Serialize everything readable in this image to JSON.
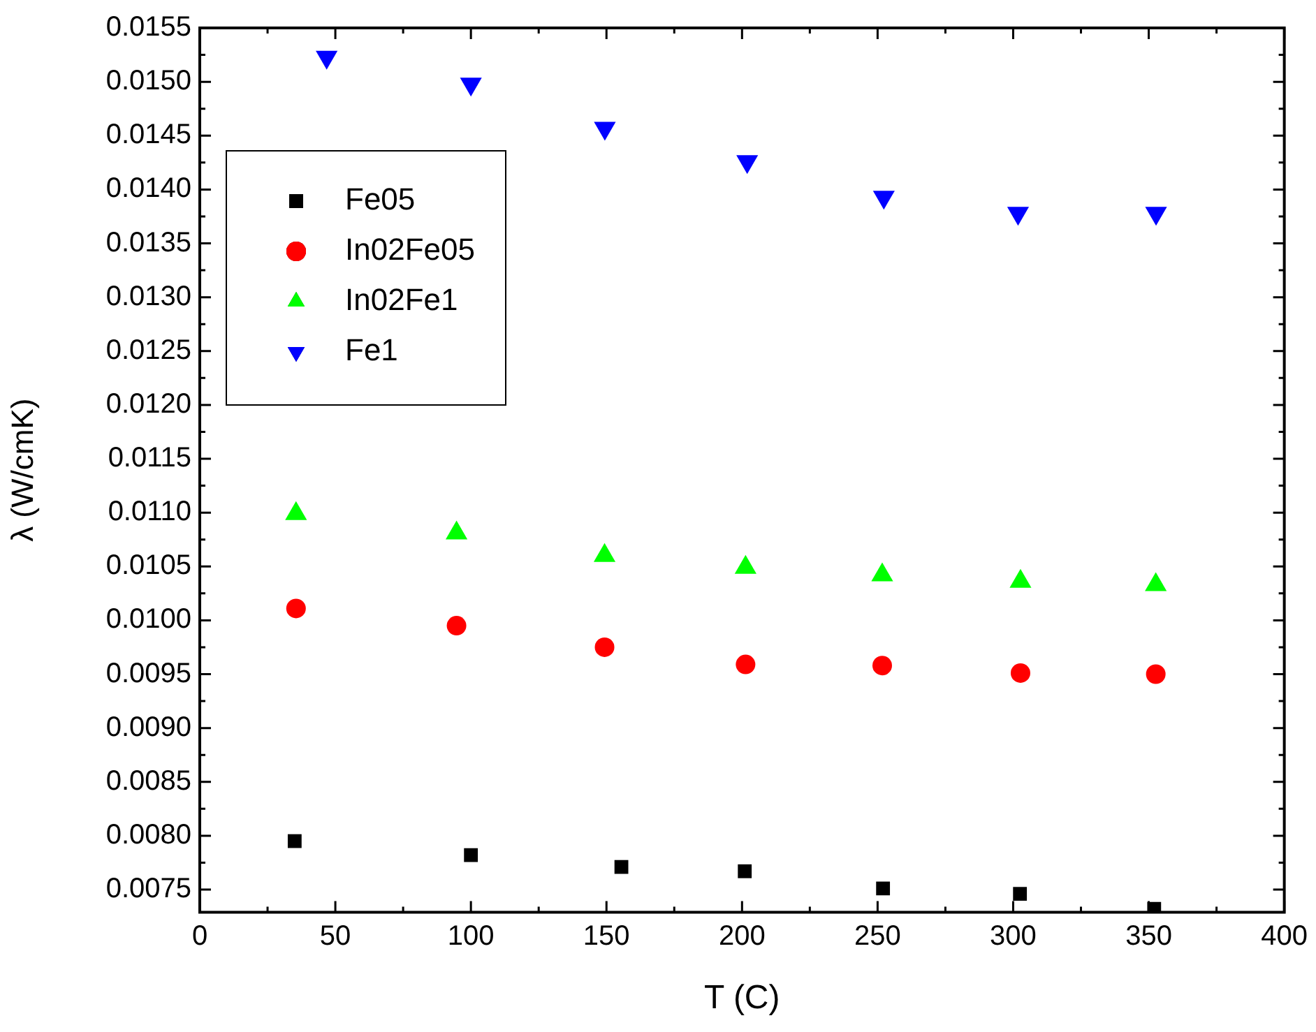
{
  "chart_data": {
    "type": "scatter",
    "xlabel": "T (C)",
    "ylabel": "λ (W/cmK)",
    "xlim": [
      0,
      400
    ],
    "xticks": [
      0,
      50,
      100,
      150,
      200,
      250,
      300,
      350,
      400
    ],
    "ylim": [
      0.00729,
      0.0155
    ],
    "yticks": [
      0.0075,
      {
        "value": 0.008,
        "label": "0.0080"
      },
      0.0085,
      {
        "value": 0.009,
        "label": "0.0090"
      },
      0.0095,
      {
        "value": 0.01,
        "label": "0.0100"
      },
      0.0105,
      {
        "value": 0.011,
        "label": "0.0110"
      },
      0.0115,
      {
        "value": 0.012,
        "label": "0.0120"
      },
      0.0125,
      {
        "value": 0.013,
        "label": "0.0130"
      },
      0.0135,
      {
        "value": 0.014,
        "label": "0.0140"
      },
      0.0145,
      {
        "value": 0.015,
        "label": "0.0150"
      },
      0.0155
    ],
    "grid": false,
    "legend": "top left",
    "series": [
      {
        "name": "Fe05",
        "color": "#000000",
        "marker": "square",
        "x": [
          35,
          100,
          155.5,
          201,
          252,
          302.5,
          352
        ],
        "values": [
          0.00795,
          0.00782,
          0.00771,
          0.00767,
          0.00751,
          0.00746,
          0.00732
        ]
      },
      {
        "name": "In02Fe05",
        "color": "#ff0000",
        "marker": "circle",
        "x": [
          35.5,
          94.7,
          149.3,
          201.3,
          251.7,
          302.7,
          352.6
        ],
        "values": [
          0.01011,
          0.00995,
          0.00975,
          0.00959,
          0.00958,
          0.00951,
          0.0095
        ]
      },
      {
        "name": "In02Fe1",
        "color": "#00ff00",
        "marker": "triangle",
        "x": [
          35.5,
          94.7,
          149.3,
          201.3,
          251.7,
          302.7,
          352.6
        ],
        "values": [
          0.01099,
          0.01081,
          0.0106,
          0.01049,
          0.01042,
          0.01036,
          0.01033
        ]
      },
      {
        "name": "Fe1",
        "color": "#0000ff",
        "marker": "triangle-down",
        "x": [
          46.8,
          100,
          149.4,
          201.9,
          252.3,
          301.8,
          352.7
        ],
        "values": [
          0.01523,
          0.01498,
          0.01457,
          0.01426,
          0.01393,
          0.01378,
          0.01378
        ]
      }
    ]
  }
}
